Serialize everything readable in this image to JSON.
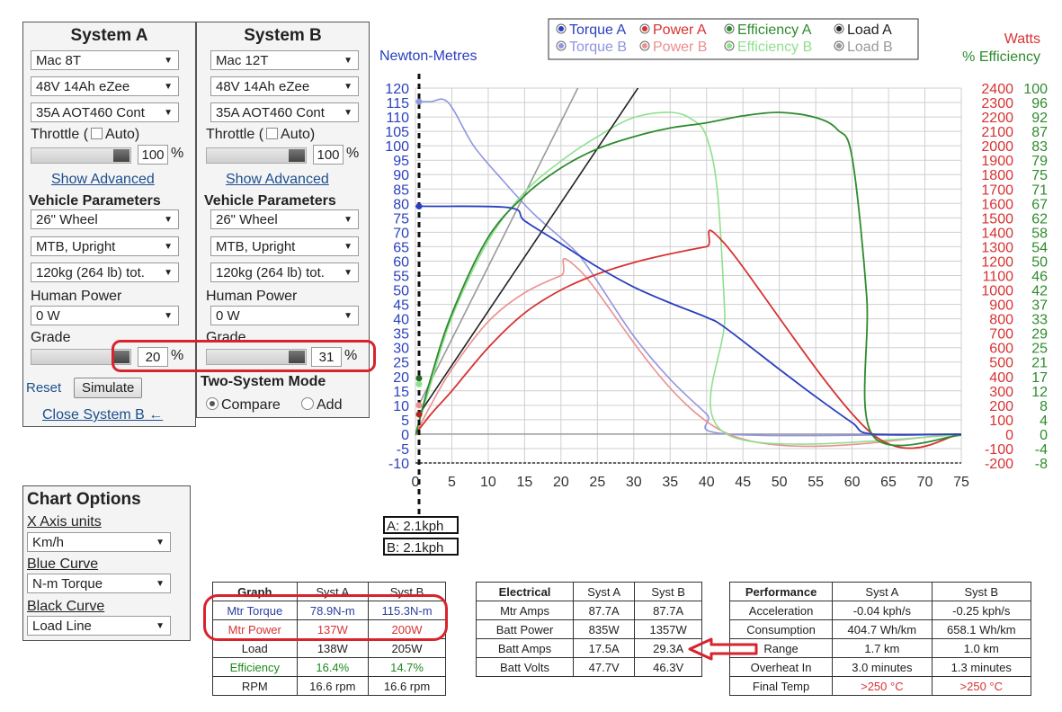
{
  "systemA": {
    "title": "System A",
    "motor": "Mac 8T",
    "battery": "48V 14Ah eZee",
    "controller": "35A AOT460 Cont",
    "throttle_label": "Throttle (",
    "auto_label": "Auto)",
    "throttle_value": "100",
    "throttle_pct": "%",
    "show_advanced": "Show Advanced",
    "vehicle_params": "Vehicle Parameters",
    "wheel": "26\"  Wheel",
    "bike_type": "MTB, Upright",
    "weight": "120kg (264 lb) tot.",
    "human_power_label": "Human Power",
    "human_power": "0 W",
    "grade_label": "Grade",
    "grade_value": "20",
    "grade_pct": "%",
    "reset": "Reset",
    "simulate": "Simulate",
    "close_b": "Close System B ←"
  },
  "systemB": {
    "title": "System B",
    "motor": "Mac 12T",
    "battery": "48V 14Ah eZee",
    "controller": "35A AOT460 Cont",
    "throttle_label": "Throttle (",
    "auto_label": "Auto)",
    "throttle_value": "100",
    "throttle_pct": "%",
    "show_advanced": "Show Advanced",
    "vehicle_params": "Vehicle Parameters",
    "wheel": "26\"  Wheel",
    "bike_type": "MTB, Upright",
    "weight": "120kg (264 lb) tot.",
    "human_power_label": "Human Power",
    "human_power": "0 W",
    "grade_label": "Grade",
    "grade_value": "31",
    "grade_pct": "%",
    "two_system_mode": "Two-System Mode",
    "compare": "Compare",
    "add": "Add"
  },
  "chart_options": {
    "title": "Chart Options",
    "x_axis_label": "X Axis units",
    "x_axis_value": "Km/h",
    "blue_curve_label": "Blue Curve",
    "blue_curve_value": "N-m Torque",
    "black_curve_label": "Black Curve",
    "black_curve_value": "Load Line"
  },
  "cursor": {
    "a": "A: 2.1kph",
    "b": "B: 2.1kph"
  },
  "colors": {
    "torque": "#2a3fbf",
    "power": "#d73232",
    "efficiency": "#2e8b2e",
    "load": "#222222"
  },
  "chart_data": {
    "type": "line",
    "left_axis_title": "Newton-Metres",
    "right_axis_title_1": "Watts",
    "right_axis_title_2": "% Efficiency",
    "x_ticks": [
      "0",
      "5",
      "10",
      "15",
      "20",
      "25",
      "30",
      "35",
      "40",
      "45",
      "50",
      "55",
      "60",
      "65",
      "70",
      "75"
    ],
    "y_ticks": [
      "-10",
      "-5",
      "0",
      "5",
      "10",
      "15",
      "20",
      "25",
      "30",
      "35",
      "40",
      "45",
      "50",
      "55",
      "60",
      "65",
      "70",
      "75",
      "80",
      "85",
      "90",
      "95",
      "100",
      "105",
      "110",
      "115",
      "120"
    ],
    "watts_ticks": [
      "-200",
      "-100",
      "0",
      "100",
      "200",
      "300",
      "400",
      "500",
      "600",
      "700",
      "800",
      "900",
      "1000",
      "1100",
      "1200",
      "1300",
      "1400",
      "1500",
      "1600",
      "1700",
      "1800",
      "1900",
      "2000",
      "2100",
      "2200",
      "2300",
      "2400"
    ],
    "eff_ticks": [
      "-8",
      "-4",
      "0",
      "4",
      "8",
      "12",
      "17",
      "21",
      "25",
      "29",
      "33",
      "37",
      "42",
      "46",
      "50",
      "54",
      "58",
      "62",
      "67",
      "71",
      "75",
      "79",
      "83",
      "87",
      "92",
      "96",
      "100"
    ],
    "xlim": [
      0,
      75
    ],
    "ylim_nm": [
      -10,
      120
    ],
    "ylim_watts": [
      -200,
      2400
    ],
    "ylim_eff": [
      -8,
      100
    ],
    "grid": true,
    "legend_position": "top",
    "legend": [
      {
        "label": "Torque A",
        "color": "#2a3fbf"
      },
      {
        "label": "Power A",
        "color": "#d73232"
      },
      {
        "label": "Efficiency A",
        "color": "#2e8b2e"
      },
      {
        "label": "Load A",
        "color": "#222222"
      },
      {
        "label": "Torque B",
        "color": "#8f96df"
      },
      {
        "label": "Power B",
        "color": "#ec8f8f"
      },
      {
        "label": "Efficiency B",
        "color": "#8fe08f"
      },
      {
        "label": "Load B",
        "color": "#999999"
      }
    ],
    "series": [
      {
        "name": "Torque A",
        "axis": "nm",
        "color": "#2a3fbf",
        "width": 1.8,
        "x": [
          0,
          2.1,
          13,
          15,
          20,
          25,
          30,
          35,
          40,
          42.5,
          50,
          55,
          60,
          62.8,
          75
        ],
        "y": [
          79,
          79,
          78.5,
          74,
          66,
          58,
          51,
          45.5,
          40.5,
          37,
          22.5,
          13,
          4,
          0,
          0
        ]
      },
      {
        "name": "Torque B",
        "axis": "nm",
        "color": "#8f96df",
        "width": 1.6,
        "x": [
          0,
          2.1,
          4.5,
          8,
          12,
          16,
          20,
          22.5,
          25,
          30,
          35,
          40,
          43,
          75
        ],
        "y": [
          115.3,
          115.3,
          115,
          100,
          88,
          77,
          68,
          62,
          53,
          34,
          19,
          7,
          0,
          0
        ]
      },
      {
        "name": "Power A",
        "axis": "w",
        "color": "#d73232",
        "width": 1.8,
        "x": [
          0,
          2.1,
          5,
          10,
          15,
          20,
          25,
          30,
          35,
          40,
          42.5,
          62.8,
          75
        ],
        "y": [
          0,
          137,
          300,
          600,
          840,
          1000,
          1110,
          1190,
          1250,
          1300,
          1320,
          0,
          0
        ]
      },
      {
        "name": "Power B",
        "axis": "w",
        "color": "#ec8f8f",
        "width": 1.6,
        "x": [
          0,
          2.1,
          5,
          10,
          15,
          20,
          22.5,
          43,
          75
        ],
        "y": [
          0,
          200,
          450,
          780,
          980,
          1100,
          1140,
          0,
          0
        ]
      },
      {
        "name": "Efficiency A",
        "axis": "e",
        "color": "#2e8b2e",
        "width": 1.8,
        "x": [
          0,
          2.1,
          5,
          10,
          15,
          20,
          25,
          30,
          35,
          40,
          45,
          50,
          55,
          58,
          60,
          62,
          62.8,
          75
        ],
        "y": [
          0,
          16.4,
          35,
          57,
          69,
          77,
          82.5,
          86,
          88.5,
          90,
          92,
          93,
          91.5,
          88,
          80,
          40,
          0,
          0
        ]
      },
      {
        "name": "Efficiency B",
        "axis": "e",
        "color": "#8fe08f",
        "width": 1.6,
        "x": [
          0,
          2.1,
          5,
          10,
          15,
          20,
          25,
          30,
          35,
          38,
          40,
          41.5,
          42.5,
          43,
          75
        ],
        "y": [
          0,
          14.7,
          34,
          56,
          70,
          79,
          86,
          91.5,
          93,
          91,
          86,
          70,
          35,
          0,
          0
        ]
      },
      {
        "name": "Load A",
        "axis": "w",
        "color": "#222222",
        "width": 1.6,
        "x": [
          0.5,
          33.5
        ],
        "y": [
          138,
          2620
        ]
      },
      {
        "name": "Load B",
        "axis": "w",
        "color": "#999999",
        "width": 1.6,
        "x": [
          0.5,
          24.5
        ],
        "y": [
          205,
          2620
        ]
      }
    ]
  },
  "graph_table": {
    "headers": [
      "Graph",
      "Syst A",
      "Syst B"
    ],
    "rows": [
      {
        "label": "Mtr Torque",
        "a": "78.9N-m",
        "b": "115.3N-m",
        "cls": "blue"
      },
      {
        "label": "Mtr Power",
        "a": "137W",
        "b": "200W",
        "cls": "red"
      },
      {
        "label": "Load",
        "a": "138W",
        "b": "205W",
        "cls": ""
      },
      {
        "label": "Efficiency",
        "a": "16.4%",
        "b": "14.7%",
        "cls": "green"
      },
      {
        "label": "RPM",
        "a": "16.6 rpm",
        "b": "16.6 rpm",
        "cls": ""
      }
    ]
  },
  "electrical_table": {
    "headers": [
      "Electrical",
      "Syst A",
      "Syst B"
    ],
    "rows": [
      {
        "label": "Mtr Amps",
        "a": "87.7A",
        "b": "87.7A"
      },
      {
        "label": "Batt Power",
        "a": "835W",
        "b": "1357W"
      },
      {
        "label": "Batt Amps",
        "a": "17.5A",
        "b": "29.3A"
      },
      {
        "label": "Batt Volts",
        "a": "47.7V",
        "b": "46.3V"
      }
    ]
  },
  "performance_table": {
    "headers": [
      "Performance",
      "Syst A",
      "Syst B"
    ],
    "rows": [
      {
        "label": "Acceleration",
        "a": "-0.04 kph/s",
        "b": "-0.25 kph/s",
        "cls": ""
      },
      {
        "label": "Consumption",
        "a": "404.7 Wh/km",
        "b": "658.1 Wh/km",
        "cls": ""
      },
      {
        "label": "Range",
        "a": "1.7 km",
        "b": "1.0 km",
        "cls": ""
      },
      {
        "label": "Overheat In",
        "a": "3.0 minutes",
        "b": "1.3 minutes",
        "cls": ""
      },
      {
        "label": "Final Temp",
        "a": ">250 °C",
        "b": ">250 °C",
        "cls": "red"
      }
    ]
  }
}
